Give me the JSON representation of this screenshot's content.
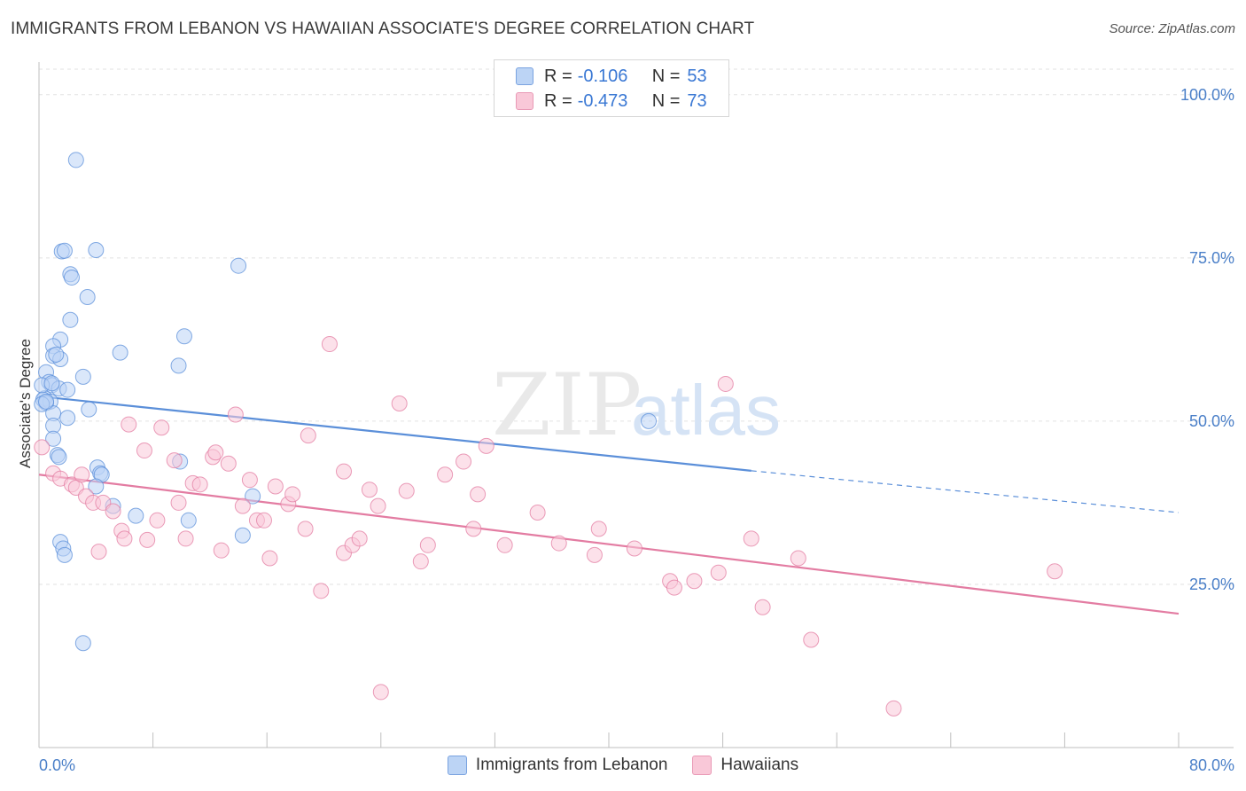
{
  "header": {
    "title": "IMMIGRANTS FROM LEBANON VS HAWAIIAN ASSOCIATE'S DEGREE CORRELATION CHART",
    "source": "Source: ZipAtlas.com"
  },
  "watermark": {
    "part1": "ZIP",
    "part2": "atlas"
  },
  "legend": {
    "rows": [
      {
        "r_label": "R =",
        "r_value": "-0.106",
        "n_label": "N =",
        "n_value": "53",
        "color": "#5b8fd9"
      },
      {
        "r_label": "R =",
        "r_value": "-0.473",
        "n_label": "N =",
        "n_value": "73",
        "color": "#e37ca2"
      }
    ]
  },
  "bottom_legend": [
    {
      "label": "Immigrants from Lebanon"
    },
    {
      "label": "Hawaiians"
    }
  ],
  "chart_data": {
    "type": "scatter",
    "title": "IMMIGRANTS FROM LEBANON VS HAWAIIAN ASSOCIATE'S DEGREE CORRELATION CHART",
    "xlabel": "",
    "ylabel": "Associate's Degree",
    "xlim": [
      0,
      80
    ],
    "ylim": [
      0,
      105
    ],
    "x_tick_labels": [
      "0.0%",
      "80.0%"
    ],
    "y_ticks": [
      25,
      50,
      75,
      100
    ],
    "y_tick_labels": [
      "25.0%",
      "50.0%",
      "75.0%",
      "100.0%"
    ],
    "grid": true,
    "legend_position": "top-center",
    "series": [
      {
        "name": "Immigrants from Lebanon",
        "color": "#5b8fd9",
        "fill": "#bcd4f5",
        "r": -0.106,
        "n": 53,
        "trend": {
          "x": [
            0,
            50
          ],
          "y": [
            53.8,
            42.4
          ],
          "dashed_to": [
            80,
            36.0
          ]
        },
        "points": [
          [
            2.6,
            90.0
          ],
          [
            1.6,
            76.0
          ],
          [
            1.8,
            76.1
          ],
          [
            4.0,
            76.2
          ],
          [
            14.0,
            73.8
          ],
          [
            2.2,
            72.5
          ],
          [
            2.3,
            72.0
          ],
          [
            3.4,
            69.0
          ],
          [
            2.2,
            65.5
          ],
          [
            10.2,
            63.0
          ],
          [
            1.5,
            62.5
          ],
          [
            1.0,
            61.5
          ],
          [
            5.7,
            60.5
          ],
          [
            1.0,
            60.0
          ],
          [
            1.5,
            59.5
          ],
          [
            9.8,
            58.5
          ],
          [
            0.5,
            57.5
          ],
          [
            3.1,
            56.8
          ],
          [
            0.7,
            56.0
          ],
          [
            0.9,
            55.5
          ],
          [
            1.4,
            55.0
          ],
          [
            2.0,
            54.8
          ],
          [
            0.4,
            53.5
          ],
          [
            0.3,
            53.3
          ],
          [
            0.8,
            53.0
          ],
          [
            0.5,
            52.8
          ],
          [
            0.2,
            52.6
          ],
          [
            3.5,
            51.8
          ],
          [
            1.0,
            51.2
          ],
          [
            2.0,
            50.5
          ],
          [
            42.8,
            50.0
          ],
          [
            1.0,
            49.3
          ],
          [
            1.0,
            47.3
          ],
          [
            1.3,
            44.8
          ],
          [
            1.4,
            44.5
          ],
          [
            9.9,
            43.8
          ],
          [
            4.1,
            42.9
          ],
          [
            4.3,
            42.0
          ],
          [
            4.4,
            41.8
          ],
          [
            4.0,
            40.0
          ],
          [
            15.0,
            38.5
          ],
          [
            5.2,
            37.0
          ],
          [
            6.8,
            35.5
          ],
          [
            10.5,
            34.8
          ],
          [
            14.3,
            32.5
          ],
          [
            1.5,
            31.5
          ],
          [
            1.7,
            30.5
          ],
          [
            1.8,
            29.5
          ],
          [
            3.1,
            16.0
          ],
          [
            0.2,
            55.5
          ],
          [
            0.5,
            53.0
          ],
          [
            1.2,
            60.2
          ],
          [
            0.9,
            55.8
          ]
        ]
      },
      {
        "name": "Hawaiians",
        "color": "#e37ca2",
        "fill": "#f9c8d8",
        "r": -0.473,
        "n": 73,
        "trend": {
          "x": [
            0,
            80
          ],
          "y": [
            41.8,
            20.5
          ]
        },
        "points": [
          [
            0.2,
            46.0
          ],
          [
            1.0,
            42.0
          ],
          [
            1.5,
            41.2
          ],
          [
            2.3,
            40.3
          ],
          [
            2.6,
            39.8
          ],
          [
            3.0,
            41.8
          ],
          [
            3.3,
            38.5
          ],
          [
            3.8,
            37.5
          ],
          [
            4.5,
            37.5
          ],
          [
            4.2,
            30.0
          ],
          [
            5.2,
            36.2
          ],
          [
            5.8,
            33.2
          ],
          [
            6.0,
            32.0
          ],
          [
            6.3,
            49.5
          ],
          [
            7.4,
            45.5
          ],
          [
            7.6,
            31.8
          ],
          [
            8.3,
            34.8
          ],
          [
            8.6,
            49.0
          ],
          [
            9.5,
            44.0
          ],
          [
            9.8,
            37.5
          ],
          [
            10.3,
            32.0
          ],
          [
            10.8,
            40.5
          ],
          [
            11.3,
            40.3
          ],
          [
            12.2,
            44.5
          ],
          [
            12.4,
            45.2
          ],
          [
            12.8,
            30.2
          ],
          [
            13.3,
            43.5
          ],
          [
            13.8,
            51.0
          ],
          [
            14.3,
            37.0
          ],
          [
            14.8,
            41.0
          ],
          [
            15.3,
            34.8
          ],
          [
            15.8,
            34.8
          ],
          [
            16.2,
            29.0
          ],
          [
            16.6,
            40.0
          ],
          [
            17.5,
            37.3
          ],
          [
            17.8,
            38.8
          ],
          [
            18.7,
            33.5
          ],
          [
            18.9,
            47.8
          ],
          [
            19.8,
            24.0
          ],
          [
            20.4,
            61.8
          ],
          [
            21.4,
            42.3
          ],
          [
            21.4,
            29.8
          ],
          [
            22.0,
            31.0
          ],
          [
            22.5,
            32.0
          ],
          [
            23.2,
            39.5
          ],
          [
            23.8,
            37.0
          ],
          [
            25.3,
            52.7
          ],
          [
            25.8,
            39.3
          ],
          [
            26.8,
            28.5
          ],
          [
            27.3,
            31.0
          ],
          [
            28.5,
            41.8
          ],
          [
            29.8,
            43.8
          ],
          [
            30.5,
            33.5
          ],
          [
            30.8,
            38.8
          ],
          [
            31.4,
            46.2
          ],
          [
            32.7,
            31.0
          ],
          [
            35.0,
            36.0
          ],
          [
            36.5,
            31.3
          ],
          [
            39.0,
            29.5
          ],
          [
            39.3,
            33.5
          ],
          [
            41.8,
            30.5
          ],
          [
            44.3,
            25.5
          ],
          [
            44.6,
            24.5
          ],
          [
            46.0,
            25.5
          ],
          [
            47.7,
            26.8
          ],
          [
            48.2,
            55.7
          ],
          [
            50.0,
            32.0
          ],
          [
            50.8,
            21.5
          ],
          [
            53.3,
            29.0
          ],
          [
            54.2,
            16.5
          ],
          [
            60.0,
            6.0
          ],
          [
            24.0,
            8.5
          ],
          [
            71.3,
            27.0
          ]
        ]
      }
    ]
  }
}
